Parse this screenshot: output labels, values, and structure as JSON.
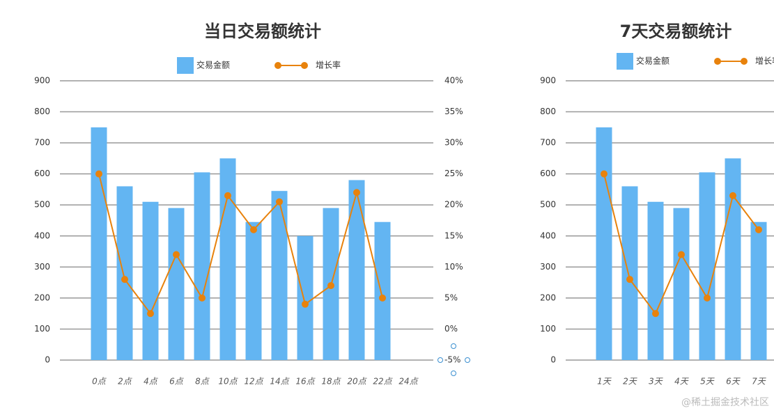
{
  "chart_data": [
    {
      "type": "bar",
      "title": "当日交易额统计",
      "categories": [
        "0点",
        "2点",
        "4点",
        "6点",
        "8点",
        "10点",
        "12点",
        "14点",
        "16点",
        "18点",
        "20点",
        "22点",
        "24点"
      ],
      "series": [
        {
          "name": "交易金额",
          "type": "bar",
          "color": "#63b5f2",
          "values": [
            750,
            560,
            510,
            490,
            605,
            650,
            445,
            545,
            400,
            490,
            580,
            445,
            null
          ]
        },
        {
          "name": "增长率",
          "type": "line",
          "axis": "y2",
          "color": "#e8820c",
          "values": [
            25,
            8,
            2.5,
            12,
            5,
            21.5,
            16,
            20.5,
            4,
            7,
            22,
            5,
            null
          ]
        }
      ],
      "ylim": [
        0,
        900
      ],
      "yticks": [
        0,
        100,
        200,
        300,
        400,
        500,
        600,
        700,
        800,
        900
      ],
      "y2lim": [
        -5,
        40
      ],
      "y2ticks": [
        {
          "value": -5,
          "label": "-5%"
        },
        {
          "value": 0,
          "label": "0%"
        },
        {
          "value": 5,
          "label": "5%"
        },
        {
          "value": 10,
          "label": "10%"
        },
        {
          "value": 15,
          "label": "15%"
        },
        {
          "value": 20,
          "label": "20%"
        },
        {
          "value": 25,
          "label": "25%"
        },
        {
          "value": 30,
          "label": "30%"
        },
        {
          "value": 35,
          "label": "35%"
        },
        {
          "value": 40,
          "label": "40%"
        }
      ],
      "grid": true
    },
    {
      "type": "bar",
      "title": "7天交易额统计",
      "categories": [
        "1天",
        "2天",
        "3天",
        "4天",
        "5天",
        "6天",
        "7天"
      ],
      "series": [
        {
          "name": "交易金额",
          "type": "bar",
          "color": "#63b5f2",
          "values": [
            750,
            560,
            510,
            490,
            605,
            650,
            445
          ]
        },
        {
          "name": "增长率",
          "type": "line",
          "axis": "y2",
          "color": "#e8820c",
          "values": [
            25,
            8,
            2.5,
            12,
            5,
            21.5,
            16
          ]
        }
      ],
      "ylim": [
        0,
        900
      ],
      "yticks": [
        0,
        100,
        200,
        300,
        400,
        500,
        600,
        700,
        800,
        900
      ],
      "y2lim": [
        -5,
        40
      ],
      "grid": true
    }
  ],
  "watermark": "@稀土掘金技术社区"
}
